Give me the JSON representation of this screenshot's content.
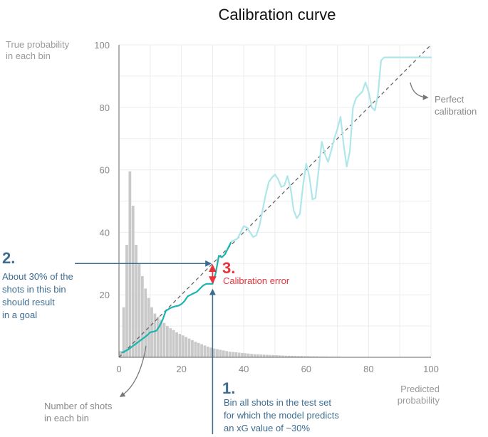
{
  "chart_data": {
    "type": "line",
    "title": "Calibration curve",
    "ylabel_lines": [
      "True probability",
      "in each bin"
    ],
    "xlabel_lines": [
      "Predicted",
      "probability"
    ],
    "xlim": [
      0,
      100
    ],
    "ylim": [
      0,
      100
    ],
    "xticks": [
      0,
      20,
      40,
      60,
      80,
      100
    ],
    "yticks": [
      20,
      40,
      60,
      80,
      100
    ],
    "grid": true,
    "colors": {
      "curve_strong": "#1bb5b0",
      "curve_light": "#aee6ea",
      "histogram": "#c9c9c9",
      "diagonal": "#666666",
      "annotation_blue": "#3d6c91",
      "annotation_red": "#e8333a",
      "annotation_gray": "#777777"
    },
    "perfect_calibration": {
      "x": [
        0,
        100
      ],
      "y": [
        0,
        100
      ]
    },
    "histogram": {
      "bin_width": 1,
      "bin_starts": [
        0,
        1,
        2,
        3,
        4,
        5,
        6,
        7,
        8,
        9,
        10,
        11,
        12,
        13,
        14,
        15,
        16,
        17,
        18,
        19,
        20,
        21,
        22,
        23,
        24,
        25,
        26,
        27,
        28,
        29,
        30,
        31,
        32,
        33,
        34,
        35,
        36,
        37,
        38,
        39,
        40,
        41,
        42,
        43,
        44,
        45,
        46,
        47,
        48,
        49,
        50,
        51,
        52,
        53,
        54,
        55,
        56,
        57,
        58,
        59,
        60,
        61,
        62,
        63,
        64,
        65,
        66,
        67,
        68,
        69,
        70
      ],
      "heights": [
        2,
        16,
        36,
        59.5,
        48.5,
        36,
        30,
        26,
        22,
        19,
        16,
        14,
        13,
        12,
        11,
        10,
        9.3,
        8.7,
        8,
        7.5,
        7,
        6.5,
        6,
        5.5,
        5,
        4.6,
        4.2,
        3.8,
        3.4,
        3.1,
        2.8,
        2.6,
        2.4,
        2.2,
        2.0,
        1.8,
        1.7,
        1.6,
        1.5,
        1.4,
        1.3,
        1.2,
        1.1,
        1.0,
        0.95,
        0.9,
        0.85,
        0.8,
        0.75,
        0.7,
        0.65,
        0.6,
        0.55,
        0.5,
        0.5,
        0.45,
        0.45,
        0.4,
        0.4,
        0.35,
        0.35,
        0.3,
        0.3,
        0.3,
        0.25,
        0.25,
        0.25,
        0.2,
        0.2,
        0.2,
        0.2
      ]
    },
    "series": [
      {
        "style": "strong",
        "x": [
          1,
          3,
          5,
          7,
          9,
          10,
          11,
          12,
          13,
          14,
          15,
          16,
          17,
          18,
          19,
          20,
          21,
          22,
          23,
          24,
          25,
          26,
          27,
          28,
          29,
          30,
          31,
          32,
          33,
          34,
          35,
          36
        ],
        "y": [
          1.5,
          2.5,
          4,
          5.5,
          7,
          8,
          8.2,
          8.5,
          10,
          12,
          14.8,
          15.5,
          16,
          16.3,
          16.5,
          17,
          18,
          19.5,
          20,
          20.5,
          21,
          22,
          23,
          23.5,
          23.5,
          23.5,
          27,
          32.5,
          32,
          33,
          35,
          37
        ]
      },
      {
        "style": "light",
        "x": [
          36,
          37,
          38,
          39,
          40,
          41,
          42,
          43,
          44,
          45,
          46,
          47,
          48,
          49,
          50,
          51,
          52,
          53,
          54,
          55,
          56,
          57,
          58,
          59,
          60,
          61,
          62,
          63,
          64,
          65,
          66,
          67,
          68,
          69,
          70,
          71,
          72,
          73,
          74,
          75,
          76,
          77,
          78,
          79,
          80,
          81,
          82,
          83,
          84,
          85,
          86,
          87,
          88,
          89,
          90,
          91,
          92,
          93,
          94,
          95,
          96,
          97,
          98,
          99,
          100
        ],
        "y": [
          37,
          37.5,
          38,
          40,
          42,
          41.5,
          40,
          38.5,
          39,
          42,
          47,
          52,
          56,
          57.5,
          58.5,
          57,
          54.5,
          55,
          58,
          54,
          47,
          44.5,
          46,
          55,
          62,
          58,
          50.5,
          51,
          60,
          69,
          65,
          62.5,
          66,
          70,
          73,
          77,
          68,
          61,
          66,
          80,
          83,
          84,
          85,
          88,
          85,
          80,
          79,
          84,
          95,
          96,
          96,
          96,
          96,
          96,
          96,
          96,
          96,
          96,
          96,
          96,
          96,
          96,
          96,
          96,
          96
        ]
      }
    ],
    "annotations": [
      {
        "number": "1.",
        "lines": [
          "Bin all shots in the test set",
          "for which the model predicts",
          "an xG value of ~30%"
        ]
      },
      {
        "number": "2.",
        "lines": [
          "About 30% of the",
          "shots in this bin",
          "should result",
          "in a goal"
        ]
      },
      {
        "number": "3.",
        "lines": [
          "Calibration error"
        ]
      }
    ],
    "side_labels": {
      "perfect": [
        "Perfect",
        "calibration"
      ],
      "shots": [
        "Number of shots",
        "in each bin"
      ]
    }
  }
}
